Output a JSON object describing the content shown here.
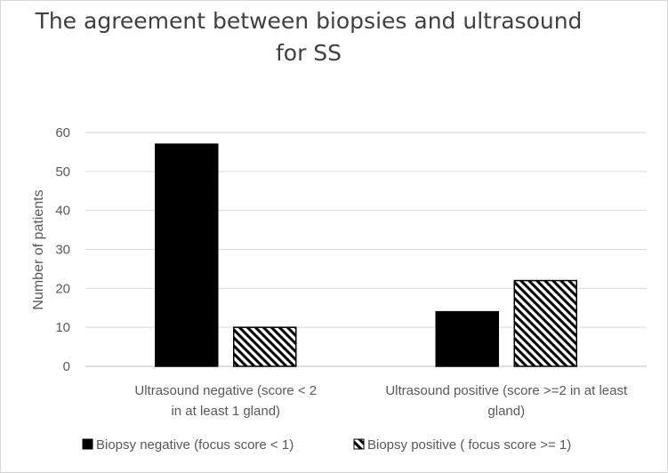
{
  "chart_data": {
    "type": "bar",
    "title": "The agreement between biopsies and ultrasound for SS",
    "title_lines": [
      "The agreement between biopsies and ultrasound",
      "for SS"
    ],
    "xlabel": "",
    "ylabel": "Number of patients",
    "ylim": [
      0,
      60
    ],
    "yticks": [
      0,
      10,
      20,
      30,
      40,
      50,
      60
    ],
    "grid": true,
    "legend_position": "bottom",
    "categories": [
      "Ultrasound negative (score < 2 in at least 1 gland)",
      "Ultrasound positive (score >=2 in at least gland)"
    ],
    "category_lines": [
      [
        "Ultrasound negative (score < 2",
        "in at least 1 gland)"
      ],
      [
        "Ultrasound positive (score >=2 in at least",
        "gland)"
      ]
    ],
    "series": [
      {
        "name": "Biopsy negative (focus score < 1)",
        "values": [
          57,
          14
        ],
        "fill": "solid",
        "color": "#000000"
      },
      {
        "name": "Biopsy positive ( focus score >= 1)",
        "values": [
          10,
          22
        ],
        "fill": "hatch",
        "color": "#000000"
      }
    ]
  }
}
